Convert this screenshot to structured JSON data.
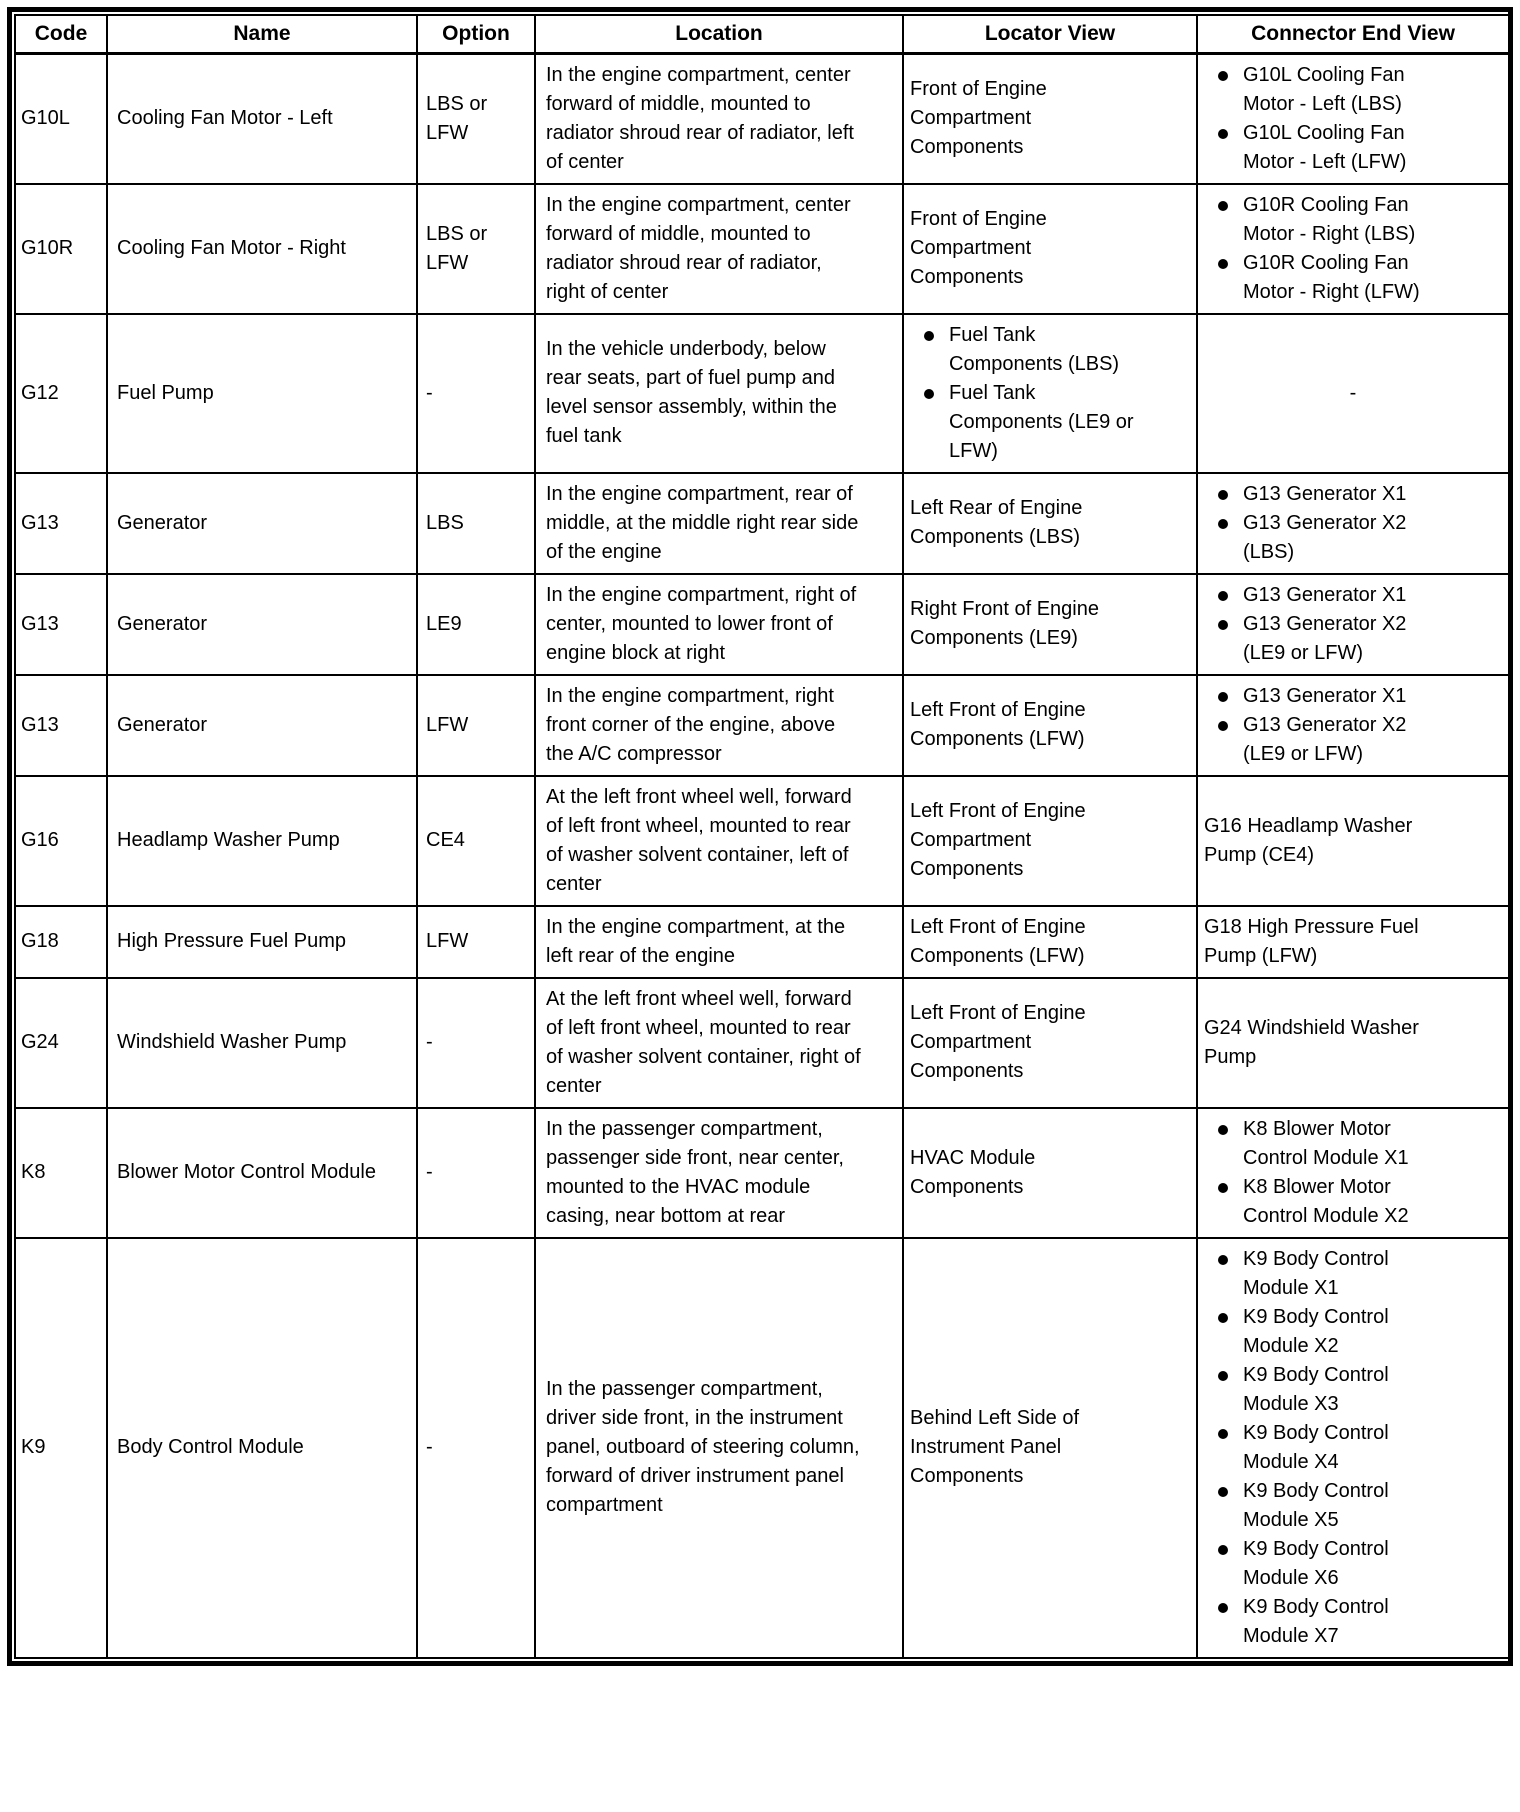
{
  "style": {
    "text_color": "#000000",
    "border_color": "#000000",
    "background_color": "#ffffff"
  },
  "icons": {
    "bullet": "filled-circle"
  },
  "document": {
    "headers": [
      "Code",
      "Name",
      "Option",
      "Location",
      "Locator View",
      "Connector End View"
    ],
    "rows": [
      {
        "code": "G10L",
        "name": "Cooling Fan Motor - Left",
        "option": "LBS or LFW",
        "location": "In the engine compartment, center forward of middle, mounted to radiator shroud rear of radiator, left of center",
        "locator": {
          "style": "text",
          "items": [
            "Front of Engine Compartment Components"
          ]
        },
        "connector": {
          "style": "bullets",
          "items": [
            "G10L Cooling Fan Motor - Left (LBS)",
            "G10L Cooling Fan Motor - Left (LFW)"
          ]
        }
      },
      {
        "code": "G10R",
        "name": "Cooling Fan Motor - Right",
        "option": "LBS or LFW",
        "location": "In the engine compartment, center forward of middle, mounted to radiator shroud rear of radiator, right of center",
        "locator": {
          "style": "text",
          "items": [
            "Front of Engine Compartment Components"
          ]
        },
        "connector": {
          "style": "bullets",
          "items": [
            "G10R Cooling Fan Motor - Right (LBS)",
            "G10R Cooling Fan Motor - Right (LFW)"
          ]
        }
      },
      {
        "code": "G12",
        "name": "Fuel Pump",
        "option": "-",
        "location": "In the vehicle underbody, below rear seats, part of fuel pump and level sensor assembly, within the fuel tank",
        "locator": {
          "style": "bullets",
          "items": [
            "Fuel Tank Components (LBS)",
            "Fuel Tank Components (LE9 or LFW)"
          ]
        },
        "connector": {
          "style": "dash",
          "items": [
            "-"
          ]
        }
      },
      {
        "code": "G13",
        "name": "Generator",
        "option": "LBS",
        "location": "In the engine compartment, rear of middle, at the middle right rear side of the engine",
        "locator": {
          "style": "text",
          "items": [
            "Left Rear of Engine Components (LBS)"
          ]
        },
        "connector": {
          "style": "bullets",
          "items": [
            "G13 Generator X1",
            "G13 Generator X2 (LBS)"
          ]
        }
      },
      {
        "code": "G13",
        "name": "Generator",
        "option": "LE9",
        "location": "In the engine compartment, right of center, mounted to lower front of engine block at right",
        "locator": {
          "style": "text",
          "items": [
            "Right Front of Engine Components (LE9)"
          ]
        },
        "connector": {
          "style": "bullets",
          "items": [
            "G13 Generator X1",
            "G13 Generator X2 (LE9 or LFW)"
          ]
        }
      },
      {
        "code": "G13",
        "name": "Generator",
        "option": "LFW",
        "location": "In the engine compartment, right front corner of the engine, above the A/C compressor",
        "locator": {
          "style": "text",
          "items": [
            "Left Front of Engine Components (LFW)"
          ]
        },
        "connector": {
          "style": "bullets",
          "items": [
            "G13 Generator X1",
            "G13 Generator X2 (LE9 or LFW)"
          ]
        }
      },
      {
        "code": "G16",
        "name": "Headlamp Washer Pump",
        "option": "CE4",
        "location": "At the left front wheel well, forward of left front wheel, mounted to rear of washer solvent container, left of center",
        "locator": {
          "style": "text",
          "items": [
            "Left Front of Engine Compartment Components"
          ]
        },
        "connector": {
          "style": "text",
          "items": [
            "G16 Headlamp Washer Pump (CE4)"
          ]
        }
      },
      {
        "code": "G18",
        "name": "High Pressure Fuel Pump",
        "option": "LFW",
        "location": "In the engine compartment, at the left rear of the engine",
        "locator": {
          "style": "text",
          "items": [
            "Left Front of Engine Components (LFW)"
          ]
        },
        "connector": {
          "style": "text",
          "items": [
            "G18 High Pressure Fuel Pump (LFW)"
          ]
        }
      },
      {
        "code": "G24",
        "name": "Windshield Washer Pump",
        "option": "-",
        "location": "At the left front wheel well, forward of left front wheel, mounted to rear of washer solvent container, right of center",
        "locator": {
          "style": "text",
          "items": [
            "Left Front of Engine Compartment Components"
          ]
        },
        "connector": {
          "style": "text",
          "items": [
            "G24 Windshield Washer Pump"
          ]
        }
      },
      {
        "code": "K8",
        "name": "Blower Motor Control Module",
        "option": "-",
        "location": "In the passenger compartment, passenger side front, near center, mounted to the HVAC module casing, near bottom at rear",
        "locator": {
          "style": "text",
          "items": [
            "HVAC Module Components"
          ]
        },
        "connector": {
          "style": "bullets",
          "items": [
            "K8 Blower Motor Control Module X1",
            "K8 Blower Motor Control Module X2"
          ]
        }
      },
      {
        "code": "K9",
        "name": "Body Control Module",
        "option": "-",
        "location": "In the passenger compartment, driver side front, in the instrument panel, outboard of steering column, forward of driver instrument panel compartment",
        "locator": {
          "style": "text",
          "items": [
            "Behind Left Side of Instrument Panel Components"
          ]
        },
        "connector": {
          "style": "bullets",
          "items": [
            "K9 Body Control Module X1",
            "K9 Body Control Module X2",
            "K9 Body Control Module X3",
            "K9 Body Control Module X4",
            "K9 Body Control Module X5",
            "K9 Body Control Module X6",
            "K9 Body Control Module X7"
          ]
        }
      }
    ]
  }
}
